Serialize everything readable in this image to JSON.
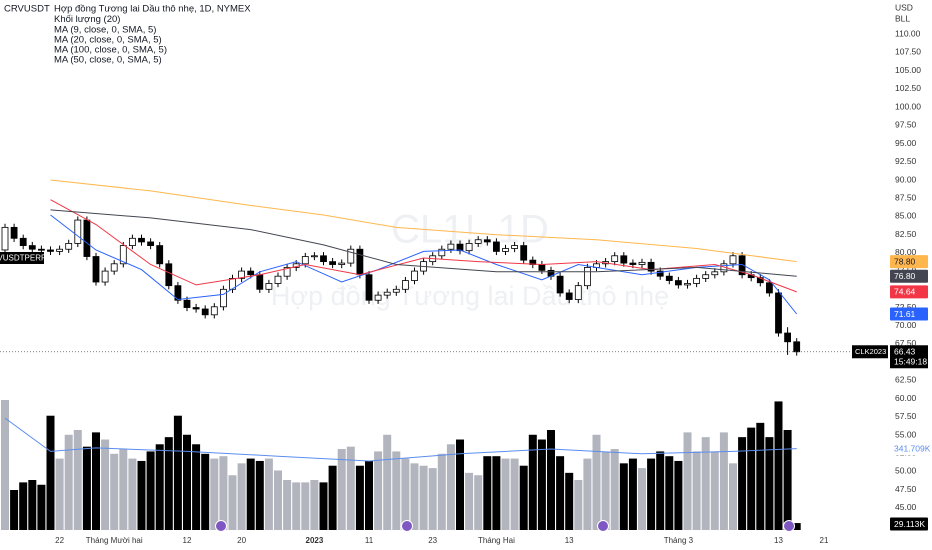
{
  "header": {
    "symbol": "CRVUSDT",
    "title": "Hợp đồng Tương lai Dầu thô nhẹ, 1D, NYMEX"
  },
  "currency": "USD",
  "unit": "BLL",
  "watermark": {
    "symbol": "CL1!, 1D",
    "name": "Hợp đồng Tương lai Dầu thô nhẹ"
  },
  "compare_tag": "CRVUSDTPERP",
  "chart_data": {
    "type": "candlestick",
    "categories": [
      null,
      null,
      null,
      null,
      null,
      null,
      "22",
      null,
      null,
      null,
      null,
      null,
      "Tháng Mười hai",
      null,
      null,
      null,
      null,
      null,
      null,
      null,
      "12",
      null,
      null,
      null,
      null,
      null,
      "20",
      null,
      null,
      null,
      null,
      null,
      null,
      null,
      "2023",
      null,
      null,
      null,
      null,
      null,
      "11",
      null,
      null,
      null,
      null,
      null,
      null,
      "23",
      null,
      null,
      null,
      null,
      null,
      null,
      "Tháng Hai",
      null,
      null,
      null,
      null,
      null,
      null,
      null,
      "13",
      null,
      null,
      null,
      null,
      null,
      null,
      null,
      null,
      null,
      null,
      null,
      "Tháng 3",
      null,
      null,
      null,
      null,
      null,
      null,
      null,
      null,
      null,
      null,
      "13",
      null,
      null,
      null,
      null,
      "21"
    ],
    "open": [
      80.4,
      83.5,
      82.0,
      81.0,
      80.5,
      80.4,
      80.2,
      80.5,
      81.3,
      84.5,
      79.5,
      76.0,
      77.5,
      78.5,
      81.0,
      82.0,
      81.5,
      81.0,
      78.5,
      75.5,
      73.5,
      72.5,
      72.3,
      71.5,
      72.6,
      75.0,
      76.5,
      77.5,
      77.0,
      75.0,
      75.8,
      76.8,
      78.0,
      78.5,
      79.5,
      79.6,
      78.8,
      78.4,
      78.6,
      80.5,
      77.0,
      73.5,
      74.2,
      74.6,
      75.0,
      76.2,
      77.5,
      78.8,
      79.6,
      80.5,
      81.2,
      80.3,
      81.3,
      81.8,
      81.5,
      80.2,
      80.6,
      81.0,
      79.0,
      78.4,
      77.6,
      76.8,
      74.5,
      73.6,
      75.5,
      78.0,
      78.5,
      78.8,
      79.6,
      78.6,
      78.4,
      78.7,
      77.5,
      76.8,
      76.2,
      75.6,
      75.8,
      76.5,
      77.0,
      77.4,
      78.5,
      79.6,
      77.0,
      76.6,
      75.9,
      74.5,
      69.0,
      67.8,
      null,
      null,
      null
    ],
    "high": [
      84.0,
      84.0,
      82.5,
      81.5,
      81.0,
      80.9,
      81.0,
      81.8,
      85.0,
      85.0,
      80.0,
      78.0,
      79.0,
      81.5,
      82.5,
      82.5,
      82.0,
      81.5,
      79.0,
      76.0,
      74.0,
      73.0,
      72.8,
      73.1,
      75.5,
      77.0,
      78.0,
      78.0,
      77.5,
      76.3,
      77.3,
      78.5,
      79.0,
      80.0,
      80.1,
      80.1,
      79.3,
      79.1,
      81.0,
      81.0,
      77.5,
      74.7,
      75.1,
      75.5,
      76.7,
      78.0,
      79.3,
      80.1,
      81.0,
      81.7,
      81.7,
      81.8,
      82.3,
      82.3,
      82.0,
      81.1,
      81.5,
      81.5,
      79.5,
      78.9,
      78.1,
      77.3,
      75.0,
      76.0,
      78.5,
      79.0,
      79.3,
      80.1,
      80.1,
      79.1,
      79.2,
      79.2,
      78.0,
      77.3,
      76.7,
      76.3,
      77.0,
      77.5,
      77.9,
      79.0,
      80.1,
      80.1,
      77.5,
      77.1,
      76.4,
      75.0,
      69.8,
      68.3,
      null,
      null,
      null
    ],
    "low": [
      79.9,
      81.5,
      80.5,
      80.0,
      79.9,
      79.7,
      79.7,
      80.0,
      80.8,
      79.0,
      75.5,
      75.5,
      77.0,
      78.0,
      80.5,
      81.0,
      80.5,
      78.0,
      75.0,
      73.0,
      72.0,
      71.8,
      71.0,
      71.0,
      72.1,
      74.5,
      76.0,
      76.5,
      74.5,
      74.5,
      75.3,
      76.3,
      77.5,
      78.0,
      79.0,
      78.3,
      77.9,
      77.9,
      78.1,
      76.5,
      73.0,
      73.0,
      73.7,
      74.1,
      74.5,
      75.7,
      77.0,
      78.3,
      79.1,
      80.0,
      79.8,
      79.8,
      80.8,
      81.0,
      79.7,
      79.7,
      80.1,
      78.5,
      77.9,
      77.1,
      76.3,
      74.0,
      73.1,
      73.1,
      75.0,
      77.5,
      78.0,
      78.3,
      78.1,
      77.9,
      77.9,
      77.0,
      76.3,
      75.7,
      75.1,
      75.1,
      75.3,
      76.0,
      76.5,
      76.9,
      78.0,
      76.5,
      76.1,
      75.4,
      74.0,
      68.5,
      66.0,
      65.9,
      null,
      null,
      null
    ],
    "close": [
      83.5,
      82.0,
      81.0,
      80.5,
      80.4,
      80.2,
      80.5,
      81.3,
      84.5,
      79.5,
      76.0,
      77.5,
      78.5,
      81.0,
      82.0,
      81.5,
      81.0,
      78.5,
      75.5,
      73.5,
      72.5,
      72.3,
      71.5,
      72.6,
      75.0,
      76.5,
      77.5,
      77.0,
      75.0,
      75.8,
      76.8,
      78.0,
      78.5,
      79.5,
      79.6,
      78.8,
      78.4,
      78.6,
      80.5,
      77.0,
      73.5,
      74.2,
      74.6,
      75.0,
      76.2,
      77.5,
      78.8,
      79.6,
      80.5,
      81.2,
      80.3,
      81.3,
      81.8,
      81.5,
      80.2,
      80.6,
      81.0,
      79.0,
      78.4,
      77.6,
      76.8,
      74.5,
      73.6,
      75.5,
      78.0,
      78.5,
      78.8,
      79.6,
      78.6,
      78.4,
      78.7,
      77.5,
      76.8,
      76.2,
      75.6,
      75.8,
      76.5,
      77.0,
      77.4,
      78.5,
      79.6,
      77.0,
      76.6,
      75.9,
      74.5,
      69.0,
      67.8,
      66.43,
      null,
      null,
      null
    ],
    "close_tag": "CLK2023",
    "countdown": "15:49:18",
    "up_color": "#ffffff",
    "down_color": "#000000",
    "ylim": [
      40.6,
      114.7
    ],
    "yticks": [
      {
        "value": 110,
        "label": "110.00"
      },
      {
        "value": 107.5,
        "label": "107.50"
      },
      {
        "value": 105,
        "label": "105.00"
      },
      {
        "value": 102.5,
        "label": "102.50"
      },
      {
        "value": 100,
        "label": "100.00"
      },
      {
        "value": 97.5,
        "label": "97.50"
      },
      {
        "value": 95,
        "label": "95.00"
      },
      {
        "value": 92.5,
        "label": "92.50"
      },
      {
        "value": 90,
        "label": "90.00"
      },
      {
        "value": 87.5,
        "label": "87.50"
      },
      {
        "value": 85,
        "label": "85.00"
      },
      {
        "value": 82.5,
        "label": "82.50"
      },
      {
        "value": 80,
        "label": "80.00"
      },
      {
        "value": 77.5,
        "label": "77.50"
      },
      {
        "value": 75,
        "label": "75.00"
      },
      {
        "value": 72.5,
        "label": "72.50"
      },
      {
        "value": 70,
        "label": "70.00"
      },
      {
        "value": 67.5,
        "label": "67.50"
      },
      {
        "value": 65,
        "label": "65.00"
      },
      {
        "value": 62.5,
        "label": "62.50"
      },
      {
        "value": 60,
        "label": "60.00"
      },
      {
        "value": 57.5,
        "label": "57.50"
      },
      {
        "value": 55,
        "label": "55.00"
      },
      {
        "value": 52.5,
        "label": "52.50"
      },
      {
        "value": 50,
        "label": "50.00"
      },
      {
        "value": 47.5,
        "label": "47.50"
      },
      {
        "value": 45,
        "label": "45.00"
      }
    ],
    "grid": false,
    "moving_averages": [
      {
        "name": "MA (9, close, 0, SMA, 5)",
        "color": "#2962ff",
        "x": [
          5,
          10,
          15,
          19,
          24,
          28,
          32,
          37,
          41,
          46,
          50,
          54,
          59,
          63,
          70,
          76,
          81,
          84,
          87
        ],
        "values": [
          85.2,
          80.4,
          77.7,
          73.6,
          74.3,
          77.4,
          78.8,
          76.0,
          77.7,
          80.2,
          80.4,
          78.4,
          76.3,
          78.4,
          77.0,
          78.0,
          78.4,
          76.3,
          71.61
        ],
        "last_label": "71.61"
      },
      {
        "name": "MA (20, close, 0, SMA, 5)",
        "color": "#f23645",
        "x": [
          5,
          10,
          16,
          21,
          28,
          33,
          39,
          46,
          52,
          59,
          65,
          71,
          78,
          82,
          87
        ],
        "values": [
          87.3,
          83.9,
          78.4,
          75.6,
          77.0,
          78.4,
          77.0,
          79.3,
          78.8,
          78.4,
          78.8,
          77.7,
          78.4,
          77.0,
          74.64
        ],
        "last_label": "74.64"
      },
      {
        "name": "MA (100, close, 0, SMA, 5)",
        "color": "#434651",
        "x": [
          5,
          16,
          27,
          35,
          43,
          54,
          65,
          76,
          87
        ],
        "values": [
          85.9,
          84.8,
          83.2,
          81.1,
          78.4,
          77.4,
          77.4,
          78.0,
          76.8
        ],
        "last_label": "76.80"
      },
      {
        "name": "MA (50, close, 0, SMA, 5)",
        "color": "#ffb74d",
        "x": [
          5,
          16,
          27,
          35,
          43,
          54,
          65,
          76,
          87
        ],
        "values": [
          90.0,
          88.5,
          86.5,
          85.2,
          83.5,
          82.5,
          81.8,
          80.6,
          78.8
        ],
        "last_label": "78.80"
      }
    ],
    "volume": {
      "name": "Khối lượng (20)",
      "up_color": "#b2b5be",
      "down_color": "#000000",
      "ylim": [
        0,
        2226
      ],
      "values": [
        546,
        168,
        200,
        210,
        190,
        480,
        300,
        400,
        420,
        350,
        410,
        380,
        320,
        340,
        300,
        290,
        330,
        360,
        390,
        480,
        400,
        360,
        320,
        300,
        310,
        230,
        280,
        300,
        290,
        300,
        250,
        210,
        200,
        200,
        210,
        200,
        270,
        340,
        350,
        270,
        290,
        330,
        400,
        330,
        300,
        280,
        270,
        260,
        320,
        360,
        380,
        240,
        230,
        310,
        310,
        300,
        300,
        270,
        400,
        380,
        420,
        310,
        240,
        210,
        300,
        400,
        330,
        340,
        280,
        300,
        260,
        300,
        330,
        310,
        290,
        410,
        330,
        390,
        330,
        410,
        280,
        390,
        430,
        450,
        390,
        540,
        420,
        29.113,
        null,
        null,
        null
      ],
      "last_label": "29.113K",
      "ma": {
        "color": "#5b8def",
        "x": [
          0,
          5,
          10,
          20,
          30,
          40,
          50,
          60,
          70,
          80,
          87
        ],
        "values": [
          470,
          330,
          345,
          330,
          310,
          290,
          320,
          340,
          320,
          330,
          341.709
        ],
        "last_label": "341.709K"
      }
    }
  }
}
